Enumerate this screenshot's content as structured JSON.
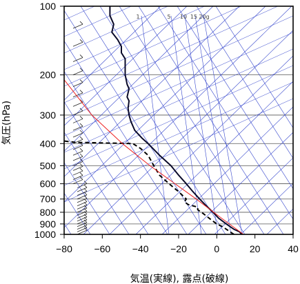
{
  "chart_data": {
    "type": "line",
    "subtype": "skew-t log-p emagram",
    "xlabel": "気温(実線), 露点(破線)",
    "ylabel": "気圧(hPa)",
    "xlim": [
      -80,
      40
    ],
    "ylim": [
      1000,
      100
    ],
    "y_scale": "log",
    "x_ticks": [
      "−80",
      "−60",
      "−40",
      "−20",
      "0",
      "20",
      "40"
    ],
    "x_tick_values": [
      -80,
      -60,
      -40,
      -20,
      0,
      20,
      40
    ],
    "y_ticks": [
      "100",
      "200",
      "300",
      "400",
      "500",
      "600",
      "700",
      "800",
      "900",
      "1000"
    ],
    "y_tick_values": [
      100,
      200,
      300,
      400,
      500,
      600,
      700,
      800,
      900,
      1000
    ],
    "grid": true,
    "mixing_ratio_labels": [
      "1",
      "5",
      "10",
      "15",
      "20g"
    ],
    "colors": {
      "temperature": "#0a0a2a",
      "dewpoint": "#000000",
      "parcel": "#ee2222",
      "guide_lines": "#3344cc",
      "grid": "#555555"
    },
    "series": [
      {
        "role": "temperature",
        "style": "solid",
        "points": [
          [
            1000,
            13
          ],
          [
            975,
            12
          ],
          [
            950,
            9
          ],
          [
            925,
            7
          ],
          [
            900,
            5
          ],
          [
            850,
            1
          ],
          [
            800,
            -2
          ],
          [
            750,
            -5.5
          ],
          [
            700,
            -9
          ],
          [
            650,
            -12.5
          ],
          [
            600,
            -16
          ],
          [
            550,
            -20
          ],
          [
            500,
            -24
          ],
          [
            450,
            -30
          ],
          [
            400,
            -36
          ],
          [
            380,
            -39
          ],
          [
            350,
            -43
          ],
          [
            320,
            -45
          ],
          [
            300,
            -46
          ],
          [
            280,
            -46.5
          ],
          [
            260,
            -46
          ],
          [
            250,
            -47
          ],
          [
            230,
            -46
          ],
          [
            220,
            -47
          ],
          [
            200,
            -48
          ],
          [
            180,
            -48
          ],
          [
            170,
            -48
          ],
          [
            160,
            -50
          ],
          [
            150,
            -50
          ],
          [
            140,
            -52
          ],
          [
            130,
            -55
          ],
          [
            120,
            -54
          ],
          [
            110,
            -56
          ],
          [
            100,
            -56
          ]
        ]
      },
      {
        "role": "dewpoint",
        "style": "dashed",
        "points": [
          [
            1000,
            9
          ],
          [
            975,
            7
          ],
          [
            950,
            5
          ],
          [
            925,
            3
          ],
          [
            900,
            0
          ],
          [
            850,
            -4
          ],
          [
            800,
            -8
          ],
          [
            780,
            -10
          ],
          [
            760,
            -10
          ],
          [
            740,
            -15
          ],
          [
            720,
            -17
          ],
          [
            700,
            -16
          ],
          [
            650,
            -20
          ],
          [
            600,
            -25
          ],
          [
            550,
            -30
          ],
          [
            500,
            -33
          ],
          [
            450,
            -36
          ],
          [
            420,
            -40
          ],
          [
            400,
            -44
          ],
          [
            395,
            -74
          ],
          [
            390,
            -80
          ]
        ]
      },
      {
        "role": "parcel",
        "style": "solid",
        "points": [
          [
            1000,
            14
          ],
          [
            850,
            2.5
          ],
          [
            700,
            -10.8
          ],
          [
            500,
            -35
          ],
          [
            400,
            -49.5
          ],
          [
            300,
            -65.5
          ],
          [
            200,
            -82
          ],
          [
            150,
            -97
          ]
        ]
      }
    ]
  }
}
